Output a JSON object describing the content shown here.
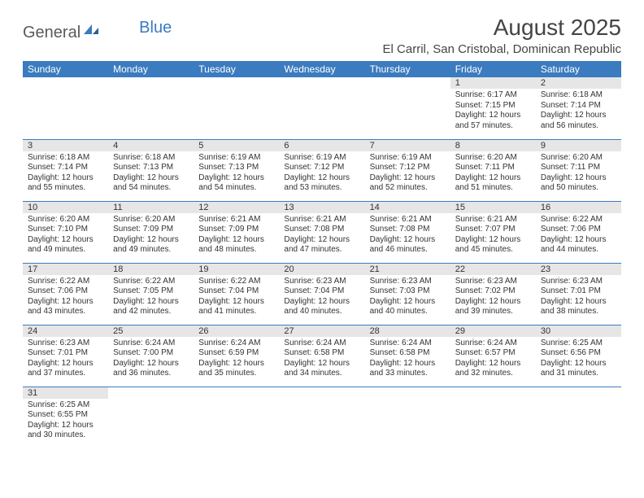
{
  "brand": {
    "part1": "General",
    "part2": "Blue"
  },
  "title": {
    "month": "August 2025",
    "location": "El Carril, San Cristobal, Dominican Republic"
  },
  "colors": {
    "header_bg": "#3b7bbf",
    "header_fg": "#ffffff",
    "daybar_bg": "#e6e6e6",
    "rule": "#3b7bbf",
    "text": "#333333",
    "brand_gray": "#5a5a5a",
    "brand_blue": "#3b7bbf"
  },
  "weekdays": [
    "Sunday",
    "Monday",
    "Tuesday",
    "Wednesday",
    "Thursday",
    "Friday",
    "Saturday"
  ],
  "weeks": [
    [
      null,
      null,
      null,
      null,
      null,
      {
        "n": "1",
        "sunrise": "6:17 AM",
        "sunset": "7:15 PM",
        "daylight": "12 hours and 57 minutes."
      },
      {
        "n": "2",
        "sunrise": "6:18 AM",
        "sunset": "7:14 PM",
        "daylight": "12 hours and 56 minutes."
      }
    ],
    [
      {
        "n": "3",
        "sunrise": "6:18 AM",
        "sunset": "7:14 PM",
        "daylight": "12 hours and 55 minutes."
      },
      {
        "n": "4",
        "sunrise": "6:18 AM",
        "sunset": "7:13 PM",
        "daylight": "12 hours and 54 minutes."
      },
      {
        "n": "5",
        "sunrise": "6:19 AM",
        "sunset": "7:13 PM",
        "daylight": "12 hours and 54 minutes."
      },
      {
        "n": "6",
        "sunrise": "6:19 AM",
        "sunset": "7:12 PM",
        "daylight": "12 hours and 53 minutes."
      },
      {
        "n": "7",
        "sunrise": "6:19 AM",
        "sunset": "7:12 PM",
        "daylight": "12 hours and 52 minutes."
      },
      {
        "n": "8",
        "sunrise": "6:20 AM",
        "sunset": "7:11 PM",
        "daylight": "12 hours and 51 minutes."
      },
      {
        "n": "9",
        "sunrise": "6:20 AM",
        "sunset": "7:11 PM",
        "daylight": "12 hours and 50 minutes."
      }
    ],
    [
      {
        "n": "10",
        "sunrise": "6:20 AM",
        "sunset": "7:10 PM",
        "daylight": "12 hours and 49 minutes."
      },
      {
        "n": "11",
        "sunrise": "6:20 AM",
        "sunset": "7:09 PM",
        "daylight": "12 hours and 49 minutes."
      },
      {
        "n": "12",
        "sunrise": "6:21 AM",
        "sunset": "7:09 PM",
        "daylight": "12 hours and 48 minutes."
      },
      {
        "n": "13",
        "sunrise": "6:21 AM",
        "sunset": "7:08 PM",
        "daylight": "12 hours and 47 minutes."
      },
      {
        "n": "14",
        "sunrise": "6:21 AM",
        "sunset": "7:08 PM",
        "daylight": "12 hours and 46 minutes."
      },
      {
        "n": "15",
        "sunrise": "6:21 AM",
        "sunset": "7:07 PM",
        "daylight": "12 hours and 45 minutes."
      },
      {
        "n": "16",
        "sunrise": "6:22 AM",
        "sunset": "7:06 PM",
        "daylight": "12 hours and 44 minutes."
      }
    ],
    [
      {
        "n": "17",
        "sunrise": "6:22 AM",
        "sunset": "7:06 PM",
        "daylight": "12 hours and 43 minutes."
      },
      {
        "n": "18",
        "sunrise": "6:22 AM",
        "sunset": "7:05 PM",
        "daylight": "12 hours and 42 minutes."
      },
      {
        "n": "19",
        "sunrise": "6:22 AM",
        "sunset": "7:04 PM",
        "daylight": "12 hours and 41 minutes."
      },
      {
        "n": "20",
        "sunrise": "6:23 AM",
        "sunset": "7:04 PM",
        "daylight": "12 hours and 40 minutes."
      },
      {
        "n": "21",
        "sunrise": "6:23 AM",
        "sunset": "7:03 PM",
        "daylight": "12 hours and 40 minutes."
      },
      {
        "n": "22",
        "sunrise": "6:23 AM",
        "sunset": "7:02 PM",
        "daylight": "12 hours and 39 minutes."
      },
      {
        "n": "23",
        "sunrise": "6:23 AM",
        "sunset": "7:01 PM",
        "daylight": "12 hours and 38 minutes."
      }
    ],
    [
      {
        "n": "24",
        "sunrise": "6:23 AM",
        "sunset": "7:01 PM",
        "daylight": "12 hours and 37 minutes."
      },
      {
        "n": "25",
        "sunrise": "6:24 AM",
        "sunset": "7:00 PM",
        "daylight": "12 hours and 36 minutes."
      },
      {
        "n": "26",
        "sunrise": "6:24 AM",
        "sunset": "6:59 PM",
        "daylight": "12 hours and 35 minutes."
      },
      {
        "n": "27",
        "sunrise": "6:24 AM",
        "sunset": "6:58 PM",
        "daylight": "12 hours and 34 minutes."
      },
      {
        "n": "28",
        "sunrise": "6:24 AM",
        "sunset": "6:58 PM",
        "daylight": "12 hours and 33 minutes."
      },
      {
        "n": "29",
        "sunrise": "6:24 AM",
        "sunset": "6:57 PM",
        "daylight": "12 hours and 32 minutes."
      },
      {
        "n": "30",
        "sunrise": "6:25 AM",
        "sunset": "6:56 PM",
        "daylight": "12 hours and 31 minutes."
      }
    ],
    [
      {
        "n": "31",
        "sunrise": "6:25 AM",
        "sunset": "6:55 PM",
        "daylight": "12 hours and 30 minutes."
      },
      null,
      null,
      null,
      null,
      null,
      null
    ]
  ],
  "labels": {
    "sunrise": "Sunrise: ",
    "sunset": "Sunset: ",
    "daylight": "Daylight: "
  }
}
